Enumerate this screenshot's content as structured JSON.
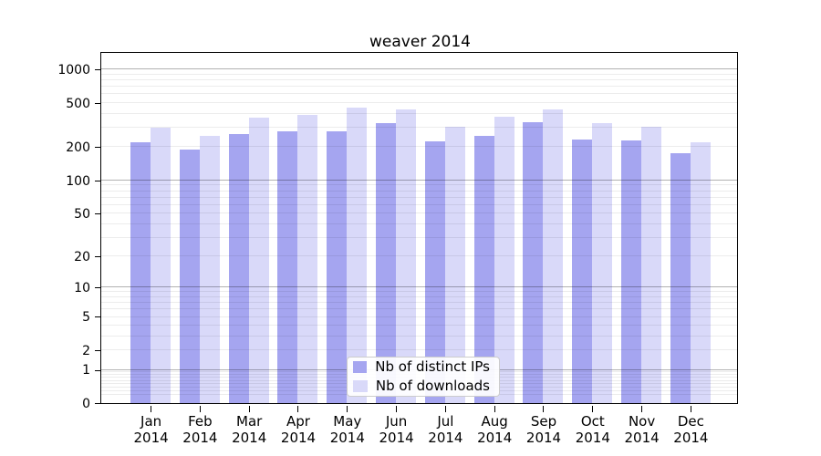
{
  "chart_data": {
    "type": "bar",
    "title": "weaver 2014",
    "categories": [
      "Jan",
      "Feb",
      "Mar",
      "Apr",
      "May",
      "Jun",
      "Jul",
      "Aug",
      "Sep",
      "Oct",
      "Nov",
      "Dec"
    ],
    "x_year": "2014",
    "series": [
      {
        "name": "Nb of distinct IPs",
        "color": "#a5a5f0",
        "values": [
          220,
          190,
          262,
          278,
          280,
          330,
          228,
          252,
          338,
          235,
          232,
          176
        ]
      },
      {
        "name": "Nb of downloads",
        "color": "#d9d9f9",
        "values": [
          298,
          252,
          368,
          395,
          458,
          435,
          309,
          380,
          435,
          330,
          305,
          222
        ]
      }
    ],
    "y_axis": {
      "scale": "log1p",
      "ticks": [
        0,
        1,
        2,
        5,
        10,
        20,
        50,
        100,
        200,
        500,
        1000
      ],
      "major_gridlines": [
        1,
        10,
        100,
        1000
      ],
      "minor_gridline_decades": [
        -1,
        0,
        1,
        2
      ],
      "ylim": [
        0,
        1300
      ]
    },
    "grid": true,
    "legend": {
      "position": "inside-bottom-center"
    }
  },
  "layout_colors": {
    "background": "#ffffff",
    "axis": "#000000",
    "text": "#000000",
    "legend_border": "#cccccc"
  }
}
